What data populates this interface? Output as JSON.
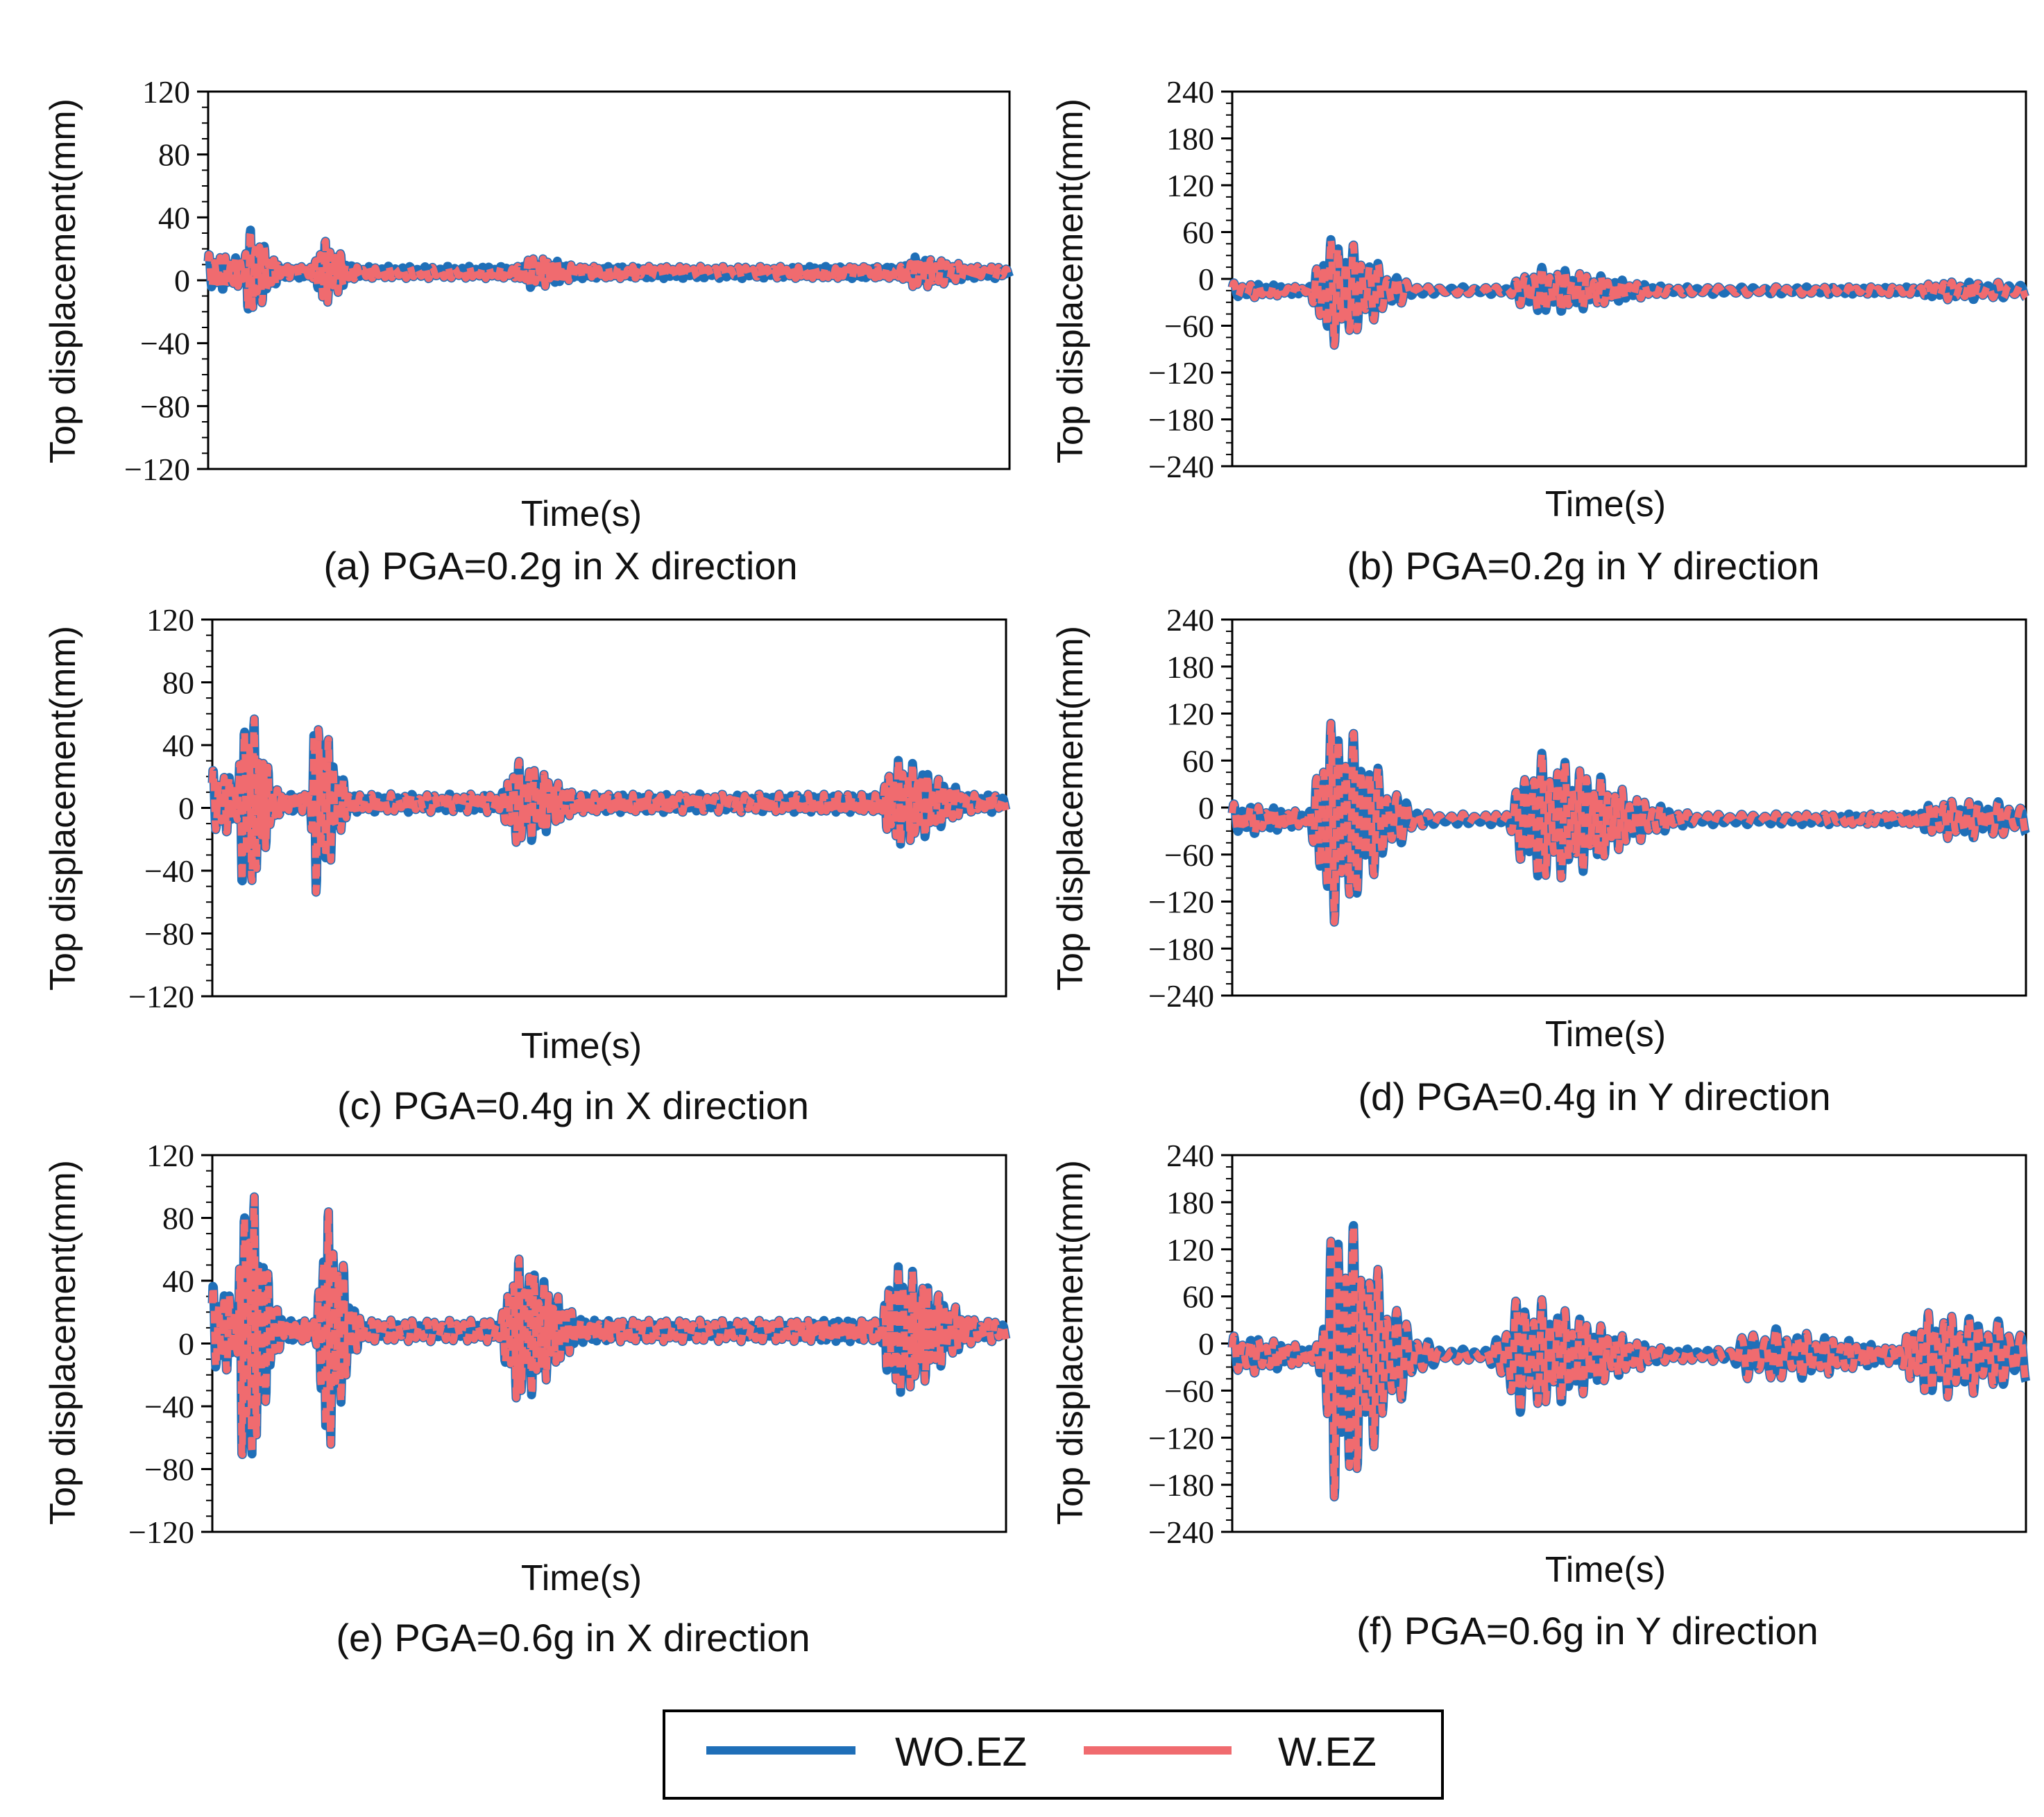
{
  "figure": {
    "legend": [
      {
        "label": "WO.EZ",
        "color": "#1f6fb8"
      },
      {
        "label": "W.EZ",
        "color": "#f06b6f"
      }
    ]
  },
  "chart_data": [
    {
      "type": "line",
      "caption": "(a) PGA=0.2g in X direction",
      "xlabel": "Time(s)",
      "ylabel": "Top displacement(mm)",
      "ylim": [
        -120,
        120
      ],
      "yticks": [
        120,
        80,
        40,
        0,
        -40,
        -80,
        -120
      ],
      "yticklabels": [
        "120",
        "80",
        "40",
        "0",
        "−40",
        "−80",
        "−120"
      ],
      "series": [
        {
          "name": "WO.EZ",
          "color": "#1f6fb8",
          "offset": 5,
          "wave": [
            [
              0.0,
              12,
              0.03
            ],
            [
              0.05,
              28,
              0.012
            ],
            [
              0.14,
              22,
              0.013
            ],
            [
              0.4,
              10,
              0.025
            ],
            [
              0.88,
              10,
              0.03
            ]
          ],
          "noise": 4
        }
      ]
    },
    {
      "type": "line",
      "caption": "(b) PGA=0.2g in Y direction",
      "xlabel": "Time(s)",
      "ylabel": "Top displacement(mm)",
      "ylim": [
        -240,
        240
      ],
      "yticks": [
        240,
        180,
        120,
        60,
        0,
        -60,
        -120,
        -180,
        -240
      ],
      "yticklabels": [
        "240",
        "180",
        "120",
        "60",
        "0",
        "−60",
        "−120",
        "−180",
        "−240"
      ],
      "series": [
        {
          "name": "WO.EZ",
          "color": "#1f6fb8",
          "offset": -15,
          "wave": [
            [
              0.0,
              10,
              0.04
            ],
            [
              0.12,
              72,
              0.03
            ],
            [
              0.38,
              30,
              0.05
            ],
            [
              0.9,
              12,
              0.08
            ]
          ],
          "noise": 5
        }
      ]
    },
    {
      "type": "line",
      "caption": "(c) PGA=0.4g in X direction",
      "xlabel": "Time(s)",
      "ylabel": "Top displacement(mm)",
      "ylim": [
        -120,
        120
      ],
      "yticks": [
        120,
        80,
        40,
        0,
        -40,
        -80,
        -120
      ],
      "yticklabels": [
        "120",
        "80",
        "40",
        "0",
        "−40",
        "−80",
        "−120"
      ],
      "series": [
        {
          "name": "WO.EZ",
          "color": "#1f6fb8",
          "offset": 3,
          "wave": [
            [
              0.0,
              22,
              0.02
            ],
            [
              0.04,
              66,
              0.012
            ],
            [
              0.13,
              58,
              0.012
            ],
            [
              0.38,
              28,
              0.025
            ],
            [
              0.86,
              28,
              0.03
            ]
          ],
          "noise": 6
        }
      ]
    },
    {
      "type": "line",
      "caption": "(d) PGA=0.4g in Y direction",
      "xlabel": "Time(s)",
      "ylabel": "Top displacement(mm)",
      "ylim": [
        -240,
        240
      ],
      "yticks": [
        240,
        180,
        120,
        60,
        0,
        -60,
        -120,
        -180,
        -240
      ],
      "yticklabels": [
        "240",
        "180",
        "120",
        "60",
        "0",
        "−60",
        "−120",
        "−180",
        "−240"
      ],
      "series": [
        {
          "name": "WO.EZ",
          "color": "#1f6fb8",
          "offset": -15,
          "wave": [
            [
              0.0,
              20,
              0.04
            ],
            [
              0.12,
              135,
              0.03
            ],
            [
              0.38,
              85,
              0.05
            ],
            [
              0.9,
              25,
              0.08
            ]
          ],
          "noise": 7
        }
      ]
    },
    {
      "type": "line",
      "caption": "(e) PGA=0.6g in X direction",
      "xlabel": "Time(s)",
      "ylabel": "Top displacement(mm)",
      "ylim": [
        -120,
        120
      ],
      "yticks": [
        120,
        80,
        40,
        0,
        -40,
        -80,
        -120
      ],
      "yticklabels": [
        "120",
        "80",
        "40",
        "0",
        "−40",
        "−80",
        "−120"
      ],
      "series": [
        {
          "name": "WO.EZ",
          "color": "#1f6fb8",
          "offset": 8,
          "wave": [
            [
              0.0,
              30,
              0.02
            ],
            [
              0.04,
              105,
              0.012
            ],
            [
              0.14,
              85,
              0.012
            ],
            [
              0.38,
              48,
              0.025
            ],
            [
              0.86,
              42,
              0.03
            ]
          ],
          "noise": 7
        }
      ]
    },
    {
      "type": "line",
      "caption": "(f) PGA=0.6g in Y direction",
      "xlabel": "Time(s)",
      "ylabel": "Top displacement(mm)",
      "ylim": [
        -240,
        240
      ],
      "yticks": [
        240,
        180,
        120,
        60,
        0,
        -60,
        -120,
        -180,
        -240
      ],
      "yticklabels": [
        "240",
        "180",
        "120",
        "60",
        "0",
        "−60",
        "−120",
        "−180",
        "−240"
      ],
      "series": [
        {
          "name": "WO.EZ",
          "color": "#1f6fb8",
          "offset": -15,
          "wave": [
            [
              0.0,
              25,
              0.04
            ],
            [
              0.13,
              185,
              0.03
            ],
            [
              0.36,
              75,
              0.05
            ],
            [
              0.66,
              35,
              0.06
            ],
            [
              0.88,
              55,
              0.07
            ]
          ],
          "noise": 8
        }
      ]
    }
  ]
}
